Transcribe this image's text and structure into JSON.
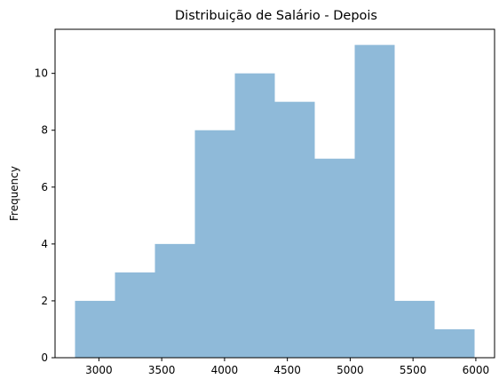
{
  "chart_data": {
    "type": "bar",
    "subtype": "histogram",
    "title": "Distribuição de Salário - Depois",
    "xlabel": "",
    "ylabel": "Frequency",
    "bins": [
      {
        "start": 2810,
        "end": 3128,
        "count": 2
      },
      {
        "start": 3128,
        "end": 3446,
        "count": 3
      },
      {
        "start": 3446,
        "end": 3764,
        "count": 4
      },
      {
        "start": 3764,
        "end": 4082,
        "count": 8
      },
      {
        "start": 4082,
        "end": 4400,
        "count": 10
      },
      {
        "start": 4400,
        "end": 4718,
        "count": 9
      },
      {
        "start": 4718,
        "end": 5036,
        "count": 7
      },
      {
        "start": 5036,
        "end": 5354,
        "count": 11
      },
      {
        "start": 5354,
        "end": 5672,
        "count": 2
      },
      {
        "start": 5672,
        "end": 5990,
        "count": 1
      }
    ],
    "xlim": [
      2651,
      6149
    ],
    "ylim": [
      0,
      11.55
    ],
    "xticks": [
      3000,
      3500,
      4000,
      4500,
      5000,
      5500,
      6000
    ],
    "yticks": [
      0,
      2,
      4,
      6,
      8,
      10
    ],
    "bar_color": "#8fbad9",
    "grid": false,
    "legend": "none"
  }
}
